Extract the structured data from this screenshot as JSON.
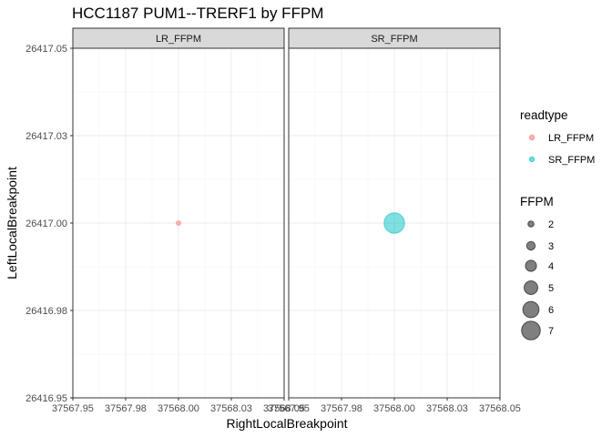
{
  "chart_data": {
    "type": "scatter",
    "title": "HCC1187 PUM1--TRERF1 by FFPM",
    "xlabel": "RightLocalBreakpoint",
    "ylabel": "LeftLocalBreakpoint",
    "facets": [
      "LR_FFPM",
      "SR_FFPM"
    ],
    "xlim": [
      37567.95,
      37568.05
    ],
    "ylim": [
      26416.95,
      26417.05
    ],
    "x_ticks": [
      37567.95,
      37567.975,
      37568.0,
      37568.025,
      37568.05
    ],
    "x_tick_labels": [
      "37567.95",
      "37567.98",
      "37568.00",
      "37568.03",
      "37568.05"
    ],
    "y_ticks": [
      26416.95,
      26416.975,
      26417.0,
      26417.025,
      26417.05
    ],
    "y_tick_labels": [
      "26416.95",
      "26416.98",
      "26417.00",
      "26417.03",
      "26417.05"
    ],
    "grid": true,
    "series": [
      {
        "name": "LR_FFPM",
        "color": "#F8766D",
        "points": [
          {
            "x": 37568.0,
            "y": 26417.0,
            "ffpm": 0.3
          }
        ]
      },
      {
        "name": "SR_FFPM",
        "color": "#00BFC4",
        "points": [
          {
            "x": 37568.0,
            "y": 26417.0,
            "ffpm": 6.6
          }
        ]
      }
    ],
    "legend": {
      "position": "right",
      "color_title": "readtype",
      "color_items": [
        {
          "label": "LR_FFPM",
          "color": "#F8766D"
        },
        {
          "label": "SR_FFPM",
          "color": "#00BFC4"
        }
      ],
      "size_title": "FFPM",
      "size_items": [
        {
          "label": "2",
          "value": 2
        },
        {
          "label": "3",
          "value": 3
        },
        {
          "label": "4",
          "value": 4
        },
        {
          "label": "5",
          "value": 5
        },
        {
          "label": "6",
          "value": 6
        },
        {
          "label": "7",
          "value": 7
        }
      ]
    }
  }
}
